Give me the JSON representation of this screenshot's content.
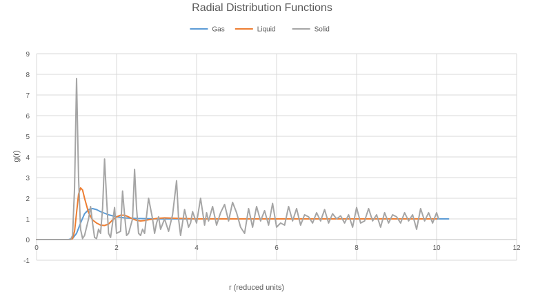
{
  "chart_data": {
    "type": "line",
    "title": "Radial Distribution Functions",
    "xlabel": "r (reduced units)",
    "ylabel": "g(r)",
    "xlim": [
      0,
      12
    ],
    "ylim": [
      -1,
      9
    ],
    "xticks": [
      "0",
      "2",
      "4",
      "6",
      "8",
      "10",
      "12"
    ],
    "yticks": [
      "-1",
      "0",
      "1",
      "2",
      "3",
      "4",
      "5",
      "6",
      "7",
      "8",
      "9"
    ],
    "grid": true,
    "legend_position": "top",
    "series": [
      {
        "name": "Gas",
        "color": "#5b9bd5",
        "x": [
          0,
          0.8,
          0.9,
          1.0,
          1.1,
          1.2,
          1.3,
          1.4,
          1.5,
          1.6,
          1.8,
          2.0,
          2.2,
          2.5,
          3.0,
          4.0,
          6.0,
          8.0,
          10.0,
          10.3
        ],
        "y": [
          0,
          0,
          0.05,
          0.3,
          0.8,
          1.25,
          1.45,
          1.5,
          1.45,
          1.35,
          1.2,
          1.1,
          1.05,
          1.02,
          1.0,
          1.0,
          1.0,
          1.0,
          1.0,
          1.0
        ]
      },
      {
        "name": "Liquid",
        "color": "#ed7d31",
        "x": [
          0,
          0.85,
          0.9,
          0.95,
          1.0,
          1.05,
          1.1,
          1.15,
          1.2,
          1.3,
          1.4,
          1.5,
          1.6,
          1.7,
          1.8,
          1.9,
          2.0,
          2.1,
          2.2,
          2.3,
          2.4,
          2.5,
          2.6,
          2.7,
          2.8,
          3.0,
          3.2,
          3.5,
          4.0,
          5.0,
          6.0,
          8.0,
          10.0
        ],
        "y": [
          0,
          0,
          0.05,
          0.4,
          1.3,
          2.2,
          2.5,
          2.4,
          2.0,
          1.3,
          0.95,
          0.8,
          0.7,
          0.68,
          0.75,
          0.95,
          1.1,
          1.18,
          1.18,
          1.1,
          1.0,
          0.93,
          0.9,
          0.92,
          0.96,
          1.02,
          1.05,
          1.03,
          1.0,
          1.0,
          1.0,
          1.0,
          1.0
        ]
      },
      {
        "name": "Solid",
        "color": "#a5a5a5",
        "x": [
          0,
          0.85,
          0.9,
          0.95,
          1.0,
          1.05,
          1.1,
          1.15,
          1.2,
          1.3,
          1.35,
          1.4,
          1.45,
          1.5,
          1.55,
          1.6,
          1.65,
          1.7,
          1.75,
          1.8,
          1.85,
          1.9,
          1.95,
          2.0,
          2.1,
          2.15,
          2.2,
          2.25,
          2.3,
          2.4,
          2.45,
          2.5,
          2.55,
          2.6,
          2.65,
          2.7,
          2.8,
          2.9,
          2.95,
          3.0,
          3.05,
          3.1,
          3.2,
          3.3,
          3.4,
          3.5,
          3.55,
          3.6,
          3.7,
          3.8,
          3.85,
          3.9,
          4.0,
          4.1,
          4.2,
          4.25,
          4.3,
          4.4,
          4.5,
          4.6,
          4.7,
          4.8,
          4.9,
          5.0,
          5.1,
          5.2,
          5.3,
          5.4,
          5.5,
          5.6,
          5.7,
          5.8,
          5.9,
          6.0,
          6.1,
          6.2,
          6.3,
          6.4,
          6.5,
          6.6,
          6.7,
          6.8,
          6.9,
          7.0,
          7.1,
          7.2,
          7.3,
          7.4,
          7.5,
          7.6,
          7.7,
          7.8,
          7.9,
          8.0,
          8.1,
          8.2,
          8.3,
          8.4,
          8.5,
          8.6,
          8.7,
          8.8,
          8.9,
          9.0,
          9.1,
          9.2,
          9.3,
          9.4,
          9.5,
          9.6,
          9.7,
          9.8,
          9.9,
          10.0,
          10.05
        ],
        "y": [
          0,
          0,
          0.2,
          2.5,
          7.8,
          3.0,
          0.5,
          0.05,
          0.2,
          1.0,
          1.6,
          0.8,
          0.1,
          0.05,
          0.5,
          0.3,
          1.5,
          3.9,
          2.0,
          0.3,
          0.1,
          0.8,
          1.55,
          0.3,
          0.4,
          2.35,
          1.2,
          0.2,
          0.3,
          1.0,
          3.4,
          1.5,
          0.3,
          0.2,
          0.5,
          0.3,
          2.0,
          1.0,
          0.3,
          0.8,
          1.1,
          0.5,
          1.0,
          0.4,
          1.2,
          2.85,
          1.0,
          0.2,
          1.45,
          0.6,
          0.8,
          1.35,
          0.8,
          2.0,
          0.7,
          1.3,
          0.9,
          1.6,
          0.7,
          1.3,
          1.7,
          0.9,
          1.8,
          1.3,
          0.6,
          0.3,
          1.5,
          0.6,
          1.6,
          0.9,
          1.4,
          0.7,
          1.75,
          0.6,
          0.8,
          0.7,
          1.6,
          0.9,
          1.5,
          0.7,
          1.2,
          1.1,
          0.8,
          1.3,
          0.9,
          1.45,
          0.8,
          1.25,
          1.0,
          1.15,
          0.8,
          1.2,
          0.6,
          1.55,
          0.8,
          0.9,
          1.5,
          0.9,
          1.2,
          0.6,
          1.3,
          0.8,
          1.2,
          1.1,
          0.8,
          1.3,
          0.9,
          1.2,
          0.5,
          1.5,
          0.9,
          1.3,
          0.8,
          1.3,
          1.0
        ]
      }
    ]
  }
}
